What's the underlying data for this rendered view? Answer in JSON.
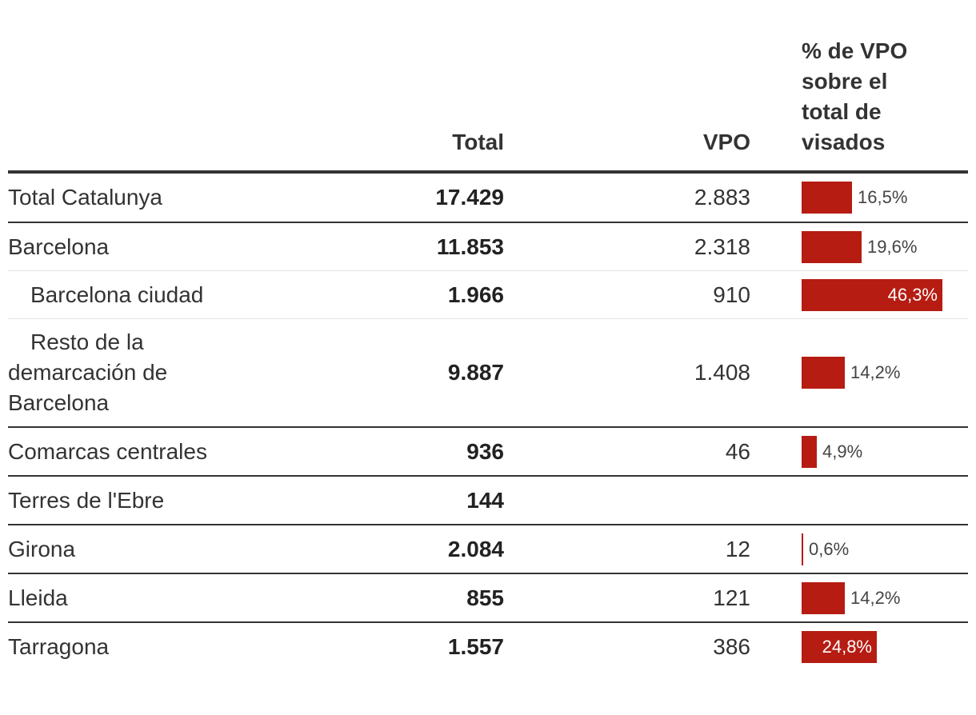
{
  "headers": {
    "name": "",
    "total": "Total",
    "vpo": "VPO",
    "pct_lines": [
      "% de VPO",
      "sobre el",
      "total de",
      "visados"
    ]
  },
  "chart_data": {
    "type": "table",
    "columns": [
      "",
      "Total",
      "VPO",
      "% de VPO sobre el total de visados"
    ],
    "rows": [
      {
        "name": "Total Catalunya",
        "total": "17.429",
        "vpo": "2.883",
        "pct": 16.5,
        "pct_label": "16,5%"
      },
      {
        "name": "Barcelona",
        "total": "11.853",
        "vpo": "2.318",
        "pct": 19.6,
        "pct_label": "19,6%"
      },
      {
        "name": "Barcelona ciudad",
        "total": "1.966",
        "vpo": "910",
        "pct": 46.3,
        "pct_label": "46,3%"
      },
      {
        "name": "Resto de la demarcación de Barcelona",
        "total": "9.887",
        "vpo": "1.408",
        "pct": 14.2,
        "pct_label": "14,2%"
      },
      {
        "name": "Comarcas centrales",
        "total": "936",
        "vpo": "46",
        "pct": 4.9,
        "pct_label": "4,9%"
      },
      {
        "name": "Terres de l'Ebre",
        "total": "144",
        "vpo": "",
        "pct": null,
        "pct_label": ""
      },
      {
        "name": "Girona",
        "total": "2.084",
        "vpo": "12",
        "pct": 0.6,
        "pct_label": "0,6%"
      },
      {
        "name": "Lleida",
        "total": "855",
        "vpo": "121",
        "pct": 14.2,
        "pct_label": "14,2%"
      },
      {
        "name": "Tarragona",
        "total": "1.557",
        "vpo": "386",
        "pct": 24.8,
        "pct_label": "24,8%"
      }
    ],
    "bar_color": "#b61c12",
    "bar_max": 46.3
  }
}
